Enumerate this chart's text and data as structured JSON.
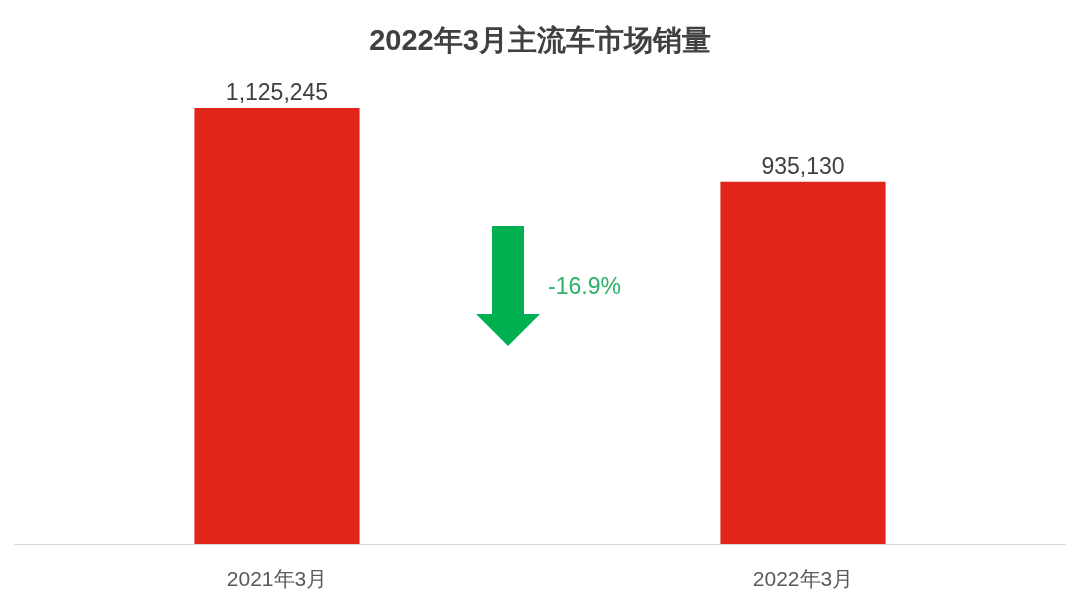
{
  "chart_data": {
    "type": "bar",
    "title": "2022年3月主流车市场销量",
    "categories": [
      "2021年3月",
      "2022年3月"
    ],
    "values": [
      1125245,
      935130
    ],
    "value_labels": [
      "1,125,245",
      "935,130"
    ],
    "color": "#e1251b",
    "tick_labels": "x",
    "annotations": [
      "-16.9%"
    ]
  }
}
